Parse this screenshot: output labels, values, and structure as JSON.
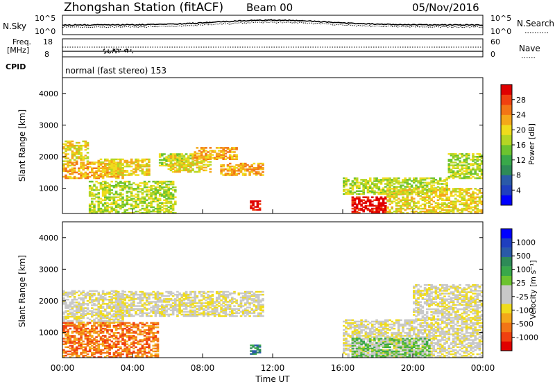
{
  "header": {
    "station": "Zhongshan Station (fitACF)",
    "beam": "Beam 00",
    "date": "05/Nov/2016"
  },
  "strips": {
    "nsky": {
      "label": "N.Sky",
      "ticks": [
        "10^5",
        "10^0"
      ]
    },
    "nsearch": {
      "label": "N.Search",
      "ticks": [
        "10^5",
        "10^0"
      ]
    },
    "freq": {
      "label_line1": "Freq.",
      "label_line2": "[MHz]",
      "ticks": [
        "18",
        "8"
      ]
    },
    "nave": {
      "label": "Nave",
      "ticks": [
        "60",
        "0"
      ]
    },
    "cpid": {
      "label": "CPID",
      "value": "normal (fast stereo) 153"
    }
  },
  "chart_data": [
    {
      "type": "heatmap",
      "panel": "power",
      "ylabel": "Slant Range [km]",
      "ylim": [
        200,
        4500
      ],
      "yticks": [
        "1000",
        "2000",
        "3000",
        "4000"
      ],
      "xlim": [
        "00:00",
        "24:00"
      ],
      "colorbar_label": "Power [dB]",
      "colorbar": {
        "ticks": [
          "28",
          "24",
          "20",
          "16",
          "12",
          "8",
          "4"
        ],
        "colors": [
          "#0000ff",
          "#1f3fbf",
          "#2a5aa8",
          "#2e8b57",
          "#39a84a",
          "#6cc32f",
          "#b5d624",
          "#f0dc1c",
          "#f4a81a",
          "#f27516",
          "#f04010",
          "#e00000"
        ]
      },
      "regions": [
        {
          "t": [
            0.0,
            1.5
          ],
          "range": [
            1700,
            2500
          ],
          "level": 7
        },
        {
          "t": [
            0.0,
            3.5
          ],
          "range": [
            1300,
            1800
          ],
          "level": 8
        },
        {
          "t": [
            1.5,
            6.5
          ],
          "range": [
            200,
            1200
          ],
          "level": 6
        },
        {
          "t": [
            2.0,
            5.0
          ],
          "range": [
            1400,
            1900
          ],
          "level": 7
        },
        {
          "t": [
            5.5,
            7.5
          ],
          "range": [
            1700,
            2100
          ],
          "level": 6
        },
        {
          "t": [
            6.0,
            8.5
          ],
          "range": [
            1500,
            2000
          ],
          "level": 7
        },
        {
          "t": [
            7.5,
            10.0
          ],
          "range": [
            1900,
            2300
          ],
          "level": 8
        },
        {
          "t": [
            9.0,
            11.5
          ],
          "range": [
            1400,
            1800
          ],
          "level": 8
        },
        {
          "t": [
            10.7,
            11.3
          ],
          "range": [
            300,
            600
          ],
          "level": 11
        },
        {
          "t": [
            16.5,
            18.5
          ],
          "range": [
            200,
            700
          ],
          "level": 11
        },
        {
          "t": [
            16.0,
            22.0
          ],
          "range": [
            800,
            1300
          ],
          "level": 6
        },
        {
          "t": [
            18.5,
            24.0
          ],
          "range": [
            200,
            1000
          ],
          "level": 7
        },
        {
          "t": [
            22.0,
            24.0
          ],
          "range": [
            1300,
            2100
          ],
          "level": 6
        }
      ]
    },
    {
      "type": "heatmap",
      "panel": "velocity",
      "ylabel": "Slant Range [km]",
      "xlabel": "Time UT",
      "ylim": [
        200,
        4500
      ],
      "yticks": [
        "1000",
        "2000",
        "3000",
        "4000"
      ],
      "xticks": [
        "00:00",
        "04:00",
        "08:00",
        "12:00",
        "16:00",
        "20:00",
        "00:00"
      ],
      "xlim": [
        "00:00",
        "24:00"
      ],
      "colorbar_label": "Velocity [m s⁻¹]",
      "colorbar": {
        "ticks": [
          "1000",
          "500",
          "100",
          "25",
          "-25",
          "-100",
          "-500",
          "-1000"
        ],
        "colors": [
          "#e00000",
          "#f04010",
          "#f27516",
          "#f4a81a",
          "#f0dc1c",
          "#c8c8c8",
          "#c8c8c8",
          "#6cc32f",
          "#39a84a",
          "#2e8b57",
          "#2a5aa8",
          "#1f3fbf",
          "#0000ff"
        ]
      },
      "regions": [
        {
          "t": [
            0.0,
            3.5
          ],
          "range": [
            1300,
            2300
          ],
          "level": 5
        },
        {
          "t": [
            0.0,
            5.5
          ],
          "range": [
            200,
            1300
          ],
          "level": 2
        },
        {
          "t": [
            3.0,
            11.5
          ],
          "range": [
            1500,
            2300
          ],
          "level": 5
        },
        {
          "t": [
            10.7,
            11.3
          ],
          "range": [
            300,
            600
          ],
          "level": 9
        },
        {
          "t": [
            16.0,
            24.0
          ],
          "range": [
            200,
            1400
          ],
          "level": 5
        },
        {
          "t": [
            16.5,
            21.0
          ],
          "range": [
            200,
            800
          ],
          "level": 7
        },
        {
          "t": [
            20.0,
            24.0
          ],
          "range": [
            1400,
            2500
          ],
          "level": 5
        }
      ]
    }
  ]
}
